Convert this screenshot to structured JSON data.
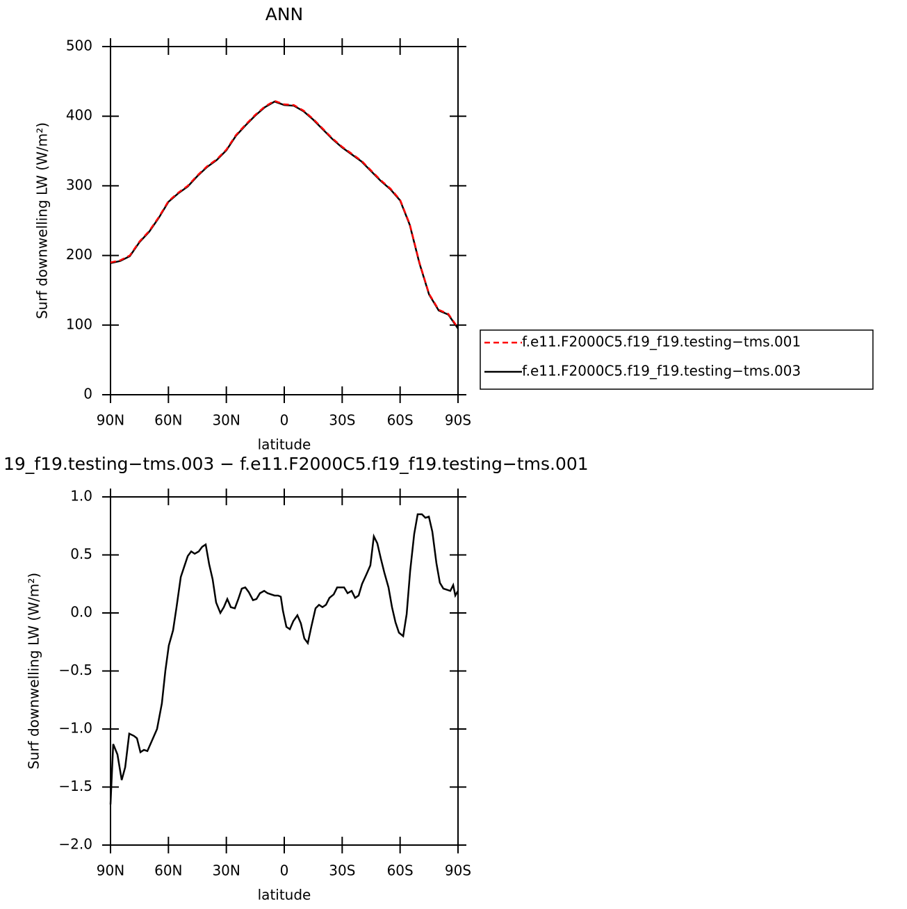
{
  "chart_data": [
    {
      "type": "line",
      "title": "ANN",
      "x_label": "latitude",
      "y_label": "Surf downwelling LW (W/m²)",
      "x": [
        90,
        85,
        80,
        75,
        70,
        65,
        60,
        55,
        50,
        45,
        40,
        35,
        30,
        25,
        20,
        15,
        10,
        5,
        0,
        -5,
        -10,
        -15,
        -20,
        -25,
        -30,
        -35,
        -40,
        -45,
        -50,
        -55,
        -60,
        -65,
        -70,
        -75,
        -80,
        -85,
        -90
      ],
      "series": [
        {
          "name": "f.e11.F2000C5.f19_f19.testing−tms.001",
          "color": "#ff0000",
          "dashed": true,
          "values": [
            190,
            193,
            200,
            220,
            235,
            255,
            278,
            290,
            300,
            315,
            328,
            338,
            352,
            373,
            388,
            402,
            414,
            422,
            417,
            416,
            408,
            396,
            382,
            368,
            356,
            346,
            336,
            322,
            308,
            296,
            280,
            245,
            190,
            145,
            122,
            116,
            96
          ]
        },
        {
          "name": "f.e11.F2000C5.f19_f19.testing−tms.003",
          "color": "#000000",
          "dashed": false,
          "values": [
            189,
            192,
            199,
            219,
            234,
            254,
            277,
            289,
            299,
            314,
            327,
            337,
            351,
            372,
            387,
            401,
            413,
            421,
            416,
            415,
            407,
            395,
            381,
            367,
            355,
            345,
            335,
            321,
            307,
            295,
            279,
            244,
            189,
            144,
            121,
            115,
            95
          ]
        }
      ],
      "xlim": [
        90,
        -90
      ],
      "xticks": [
        {
          "value": 90,
          "label": "90N"
        },
        {
          "value": 60,
          "label": "60N"
        },
        {
          "value": 30,
          "label": "30N"
        },
        0,
        {
          "value": -30,
          "label": "30S"
        },
        {
          "value": -60,
          "label": "60S"
        },
        {
          "value": -90,
          "label": "90S"
        }
      ],
      "ylim": [
        0,
        500
      ],
      "yticks": [
        0,
        100,
        200,
        300,
        400,
        500
      ],
      "legend": "right"
    },
    {
      "type": "line",
      "title": "19_f19.testing−tms.003 − f.e11.F2000C5.f19_f19.testing−tms.001",
      "x_label": "latitude",
      "y_label": "Surf downwelling LW (W/m²)",
      "x": [
        90,
        88.6,
        86.4,
        84.2,
        82.4,
        80.3,
        77.8,
        76.3,
        74.5,
        72.7,
        70.9,
        68.0,
        65.9,
        63.4,
        61.6,
        59.8,
        57.6,
        55.8,
        53.6,
        51.8,
        50.0,
        48.2,
        46.4,
        44.3,
        42.5,
        40.7,
        38.9,
        37.1,
        35.3,
        33.1,
        31.3,
        29.5,
        27.7,
        25.6,
        23.8,
        22.0,
        20.2,
        18.4,
        16.2,
        14.4,
        12.6,
        10.4,
        8.6,
        6.8,
        5.0,
        3.2,
        1.8,
        0.7,
        -1.1,
        -2.9,
        -4.7,
        -6.8,
        -8.6,
        -10.4,
        -12.2,
        -14.0,
        -16.2,
        -18.0,
        -19.8,
        -21.6,
        -23.4,
        -25.6,
        -27.4,
        -29.2,
        -31.0,
        -32.8,
        -34.9,
        -36.7,
        -38.5,
        -40.3,
        -42.5,
        -44.6,
        -46.4,
        -48.2,
        -50.0,
        -51.8,
        -54.0,
        -55.8,
        -57.6,
        -59.4,
        -61.6,
        -63.4,
        -65.2,
        -67.3,
        -69.1,
        -71.3,
        -73.1,
        -74.9,
        -76.7,
        -78.8,
        -80.6,
        -82.4,
        -84.2,
        -86.0,
        -87.5,
        -88.6,
        -90
      ],
      "series": [
        {
          "color": "#000000",
          "dashed": false,
          "values": [
            -1.65,
            -1.13,
            -1.22,
            -1.44,
            -1.33,
            -1.04,
            -1.06,
            -1.08,
            -1.2,
            -1.18,
            -1.19,
            -1.08,
            -1.0,
            -0.78,
            -0.5,
            -0.28,
            -0.15,
            0.05,
            0.31,
            0.4,
            0.49,
            0.53,
            0.51,
            0.53,
            0.57,
            0.59,
            0.42,
            0.29,
            0.09,
            0.0,
            0.05,
            0.12,
            0.05,
            0.04,
            0.12,
            0.21,
            0.22,
            0.18,
            0.11,
            0.12,
            0.17,
            0.19,
            0.17,
            0.16,
            0.15,
            0.15,
            0.14,
            0.02,
            -0.12,
            -0.14,
            -0.07,
            -0.02,
            -0.09,
            -0.22,
            -0.26,
            -0.12,
            0.04,
            0.07,
            0.05,
            0.07,
            0.13,
            0.16,
            0.22,
            0.22,
            0.22,
            0.17,
            0.19,
            0.13,
            0.15,
            0.25,
            0.33,
            0.41,
            0.66,
            0.6,
            0.47,
            0.35,
            0.22,
            0.05,
            -0.08,
            -0.17,
            -0.2,
            -0.01,
            0.36,
            0.68,
            0.85,
            0.85,
            0.82,
            0.83,
            0.7,
            0.43,
            0.26,
            0.21,
            0.2,
            0.19,
            0.24,
            0.15,
            0.19
          ]
        }
      ],
      "xlim": [
        90,
        -90
      ],
      "xticks": [
        {
          "value": 90,
          "label": "90N"
        },
        {
          "value": 60,
          "label": "60N"
        },
        {
          "value": 30,
          "label": "30N"
        },
        0,
        {
          "value": -30,
          "label": "30S"
        },
        {
          "value": -60,
          "label": "60S"
        },
        {
          "value": -90,
          "label": "90S"
        }
      ],
      "ylim": [
        -2,
        1
      ],
      "yticks": [
        {
          "value": -2,
          "label": "−2.0"
        },
        {
          "value": -1.5,
          "label": "−1.5"
        },
        {
          "value": -1,
          "label": "−1.0"
        },
        {
          "value": -0.5,
          "label": "−0.5"
        },
        {
          "value": 0,
          "label": "0.0"
        },
        0.5,
        {
          "value": 1,
          "label": "1.0"
        }
      ]
    }
  ]
}
